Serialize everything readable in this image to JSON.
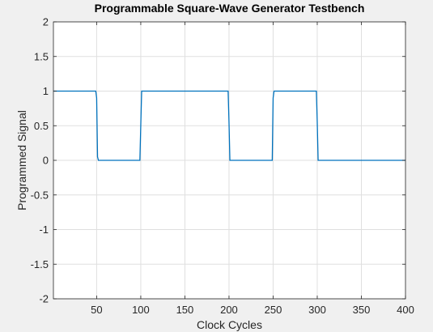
{
  "chart_data": {
    "type": "line",
    "title": "Programmable Square-Wave Generator Testbench",
    "xlabel": "Clock Cycles",
    "ylabel": "Programmed Signal",
    "xlim": [
      1,
      400
    ],
    "ylim": [
      -2,
      2
    ],
    "xticks": [
      50,
      100,
      150,
      200,
      250,
      300,
      350,
      400
    ],
    "yticks": [
      -2,
      -1.5,
      -1,
      -0.5,
      0,
      0.5,
      1,
      1.5,
      2
    ],
    "grid": true,
    "series": [
      {
        "color": "#0072bd",
        "x": [
          1,
          49,
          50,
          51,
          52,
          99,
          100,
          101,
          102,
          199,
          200,
          201,
          202,
          249,
          250,
          251,
          252,
          299,
          300,
          301,
          302,
          400
        ],
        "y": [
          1,
          1,
          0.9,
          0.05,
          0,
          0,
          0.5,
          1,
          1,
          1,
          0.55,
          0,
          0,
          0,
          0.9,
          1,
          1,
          1,
          0.55,
          0,
          0,
          0
        ]
      }
    ]
  },
  "colors": {
    "figure_background": "#f0f0f0",
    "axes_background": "#ffffff",
    "grid": "#dfdfdf",
    "axis": "#262626",
    "line": "#0072bd"
  }
}
